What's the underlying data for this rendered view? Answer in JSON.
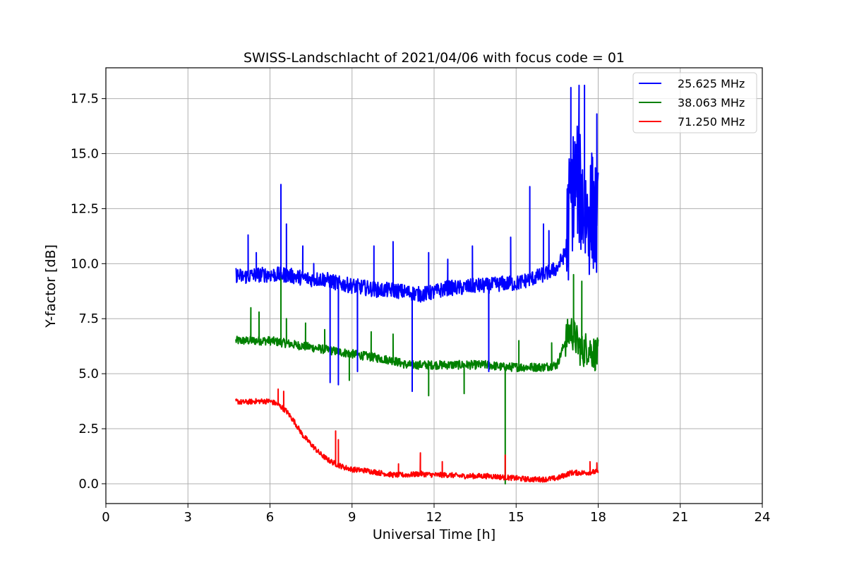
{
  "chart_data": {
    "type": "line",
    "title": "SWISS-Landschlacht of 2021/04/06 with focus code = 01",
    "xlabel": "Universal Time [h]",
    "ylabel": "Y-factor [dB]",
    "xlim": [
      0,
      24
    ],
    "ylim": [
      -0.9,
      18.9
    ],
    "x_ticks": [
      0,
      3,
      6,
      9,
      12,
      15,
      18,
      21,
      24
    ],
    "x_tick_labels": [
      "0",
      "3",
      "6",
      "9",
      "12",
      "15",
      "18",
      "21",
      "24"
    ],
    "y_ticks": [
      0.0,
      2.5,
      5.0,
      7.5,
      10.0,
      12.5,
      15.0,
      17.5
    ],
    "y_tick_labels": [
      "0.0",
      "2.5",
      "5.0",
      "7.5",
      "10.0",
      "12.5",
      "15.0",
      "17.5"
    ],
    "grid": true,
    "legend_position": "top-right",
    "series": [
      {
        "name": "25.625 MHz",
        "color": "#0000ff",
        "x": [
          4.75,
          5.0,
          5.5,
          6.0,
          6.5,
          7.0,
          7.5,
          8.0,
          8.5,
          9.0,
          9.5,
          10.0,
          10.5,
          11.0,
          11.5,
          12.0,
          12.5,
          13.0,
          13.5,
          14.0,
          14.5,
          15.0,
          15.5,
          16.0,
          16.5,
          16.8,
          17.0,
          17.2,
          17.4,
          17.6,
          17.8,
          18.0
        ],
        "y": [
          9.5,
          9.4,
          9.5,
          9.5,
          9.5,
          9.4,
          9.3,
          9.3,
          9.1,
          9.0,
          8.9,
          8.8,
          8.8,
          8.7,
          8.6,
          8.7,
          8.9,
          8.9,
          9.0,
          9.0,
          9.1,
          9.1,
          9.3,
          9.5,
          9.8,
          10.5,
          13.0,
          14.0,
          13.0,
          12.0,
          12.5,
          11.5
        ],
        "spikes": [
          {
            "x": 5.2,
            "y": 11.3
          },
          {
            "x": 5.5,
            "y": 10.5
          },
          {
            "x": 6.4,
            "y": 13.6
          },
          {
            "x": 6.6,
            "y": 11.8
          },
          {
            "x": 7.2,
            "y": 10.8
          },
          {
            "x": 7.6,
            "y": 10.0
          },
          {
            "x": 8.2,
            "y": 4.6
          },
          {
            "x": 8.5,
            "y": 4.5
          },
          {
            "x": 9.2,
            "y": 5.1
          },
          {
            "x": 9.8,
            "y": 10.8
          },
          {
            "x": 10.5,
            "y": 11.0
          },
          {
            "x": 11.2,
            "y": 4.2
          },
          {
            "x": 11.8,
            "y": 10.5
          },
          {
            "x": 12.5,
            "y": 10.2
          },
          {
            "x": 13.4,
            "y": 10.8
          },
          {
            "x": 14.0,
            "y": 5.1
          },
          {
            "x": 14.8,
            "y": 11.2
          },
          {
            "x": 15.5,
            "y": 13.5
          },
          {
            "x": 16.0,
            "y": 11.8
          },
          {
            "x": 16.2,
            "y": 11.5
          },
          {
            "x": 17.0,
            "y": 18.0
          },
          {
            "x": 17.3,
            "y": 18.1
          },
          {
            "x": 17.5,
            "y": 18.1
          },
          {
            "x": 17.95,
            "y": 16.8
          }
        ]
      },
      {
        "name": "38.063 MHz",
        "color": "#008000",
        "x": [
          4.75,
          5.0,
          5.5,
          6.0,
          6.5,
          7.0,
          7.5,
          8.0,
          8.5,
          9.0,
          9.5,
          10.0,
          10.5,
          11.0,
          11.5,
          12.0,
          12.5,
          13.0,
          13.5,
          14.0,
          14.5,
          15.0,
          15.5,
          16.0,
          16.5,
          16.8,
          17.0,
          17.2,
          17.4,
          17.6,
          17.8,
          18.0
        ],
        "y": [
          6.5,
          6.5,
          6.5,
          6.5,
          6.4,
          6.3,
          6.2,
          6.1,
          6.0,
          5.9,
          5.8,
          5.7,
          5.6,
          5.4,
          5.4,
          5.4,
          5.4,
          5.4,
          5.4,
          5.4,
          5.3,
          5.3,
          5.3,
          5.3,
          5.4,
          6.5,
          7.0,
          6.5,
          6.0,
          6.2,
          6.0,
          5.8
        ],
        "spikes": [
          {
            "x": 5.3,
            "y": 8.0
          },
          {
            "x": 5.6,
            "y": 7.8
          },
          {
            "x": 6.4,
            "y": 9.9
          },
          {
            "x": 6.6,
            "y": 7.5
          },
          {
            "x": 7.3,
            "y": 7.3
          },
          {
            "x": 8.0,
            "y": 7.0
          },
          {
            "x": 8.9,
            "y": 4.7
          },
          {
            "x": 9.7,
            "y": 6.9
          },
          {
            "x": 10.5,
            "y": 6.8
          },
          {
            "x": 11.8,
            "y": 4.0
          },
          {
            "x": 13.1,
            "y": 4.1
          },
          {
            "x": 14.6,
            "y": 0.0
          },
          {
            "x": 15.1,
            "y": 6.5
          },
          {
            "x": 16.3,
            "y": 6.4
          },
          {
            "x": 17.1,
            "y": 9.5
          },
          {
            "x": 17.4,
            "y": 9.2
          }
        ]
      },
      {
        "name": "71.250 MHz",
        "color": "#ff0000",
        "x": [
          4.75,
          5.0,
          5.5,
          6.0,
          6.3,
          6.6,
          6.9,
          7.2,
          7.5,
          7.8,
          8.1,
          8.4,
          8.7,
          9.0,
          9.5,
          10.0,
          10.5,
          11.0,
          11.5,
          12.0,
          12.5,
          13.0,
          13.5,
          14.0,
          14.5,
          15.0,
          15.5,
          16.0,
          16.5,
          17.0,
          17.5,
          18.0
        ],
        "y": [
          3.75,
          3.7,
          3.75,
          3.75,
          3.6,
          3.3,
          2.8,
          2.2,
          1.8,
          1.4,
          1.1,
          0.9,
          0.75,
          0.65,
          0.6,
          0.5,
          0.4,
          0.4,
          0.45,
          0.4,
          0.4,
          0.35,
          0.35,
          0.35,
          0.3,
          0.25,
          0.2,
          0.2,
          0.25,
          0.5,
          0.5,
          0.55
        ],
        "spikes": [
          {
            "x": 6.3,
            "y": 4.3
          },
          {
            "x": 6.5,
            "y": 4.2
          },
          {
            "x": 8.4,
            "y": 2.4
          },
          {
            "x": 8.5,
            "y": 2.0
          },
          {
            "x": 10.7,
            "y": 0.9
          },
          {
            "x": 11.5,
            "y": 1.4
          },
          {
            "x": 12.3,
            "y": 1.0
          },
          {
            "x": 14.6,
            "y": 1.3
          },
          {
            "x": 17.7,
            "y": 1.0
          },
          {
            "x": 17.95,
            "y": 0.95
          }
        ]
      }
    ]
  }
}
